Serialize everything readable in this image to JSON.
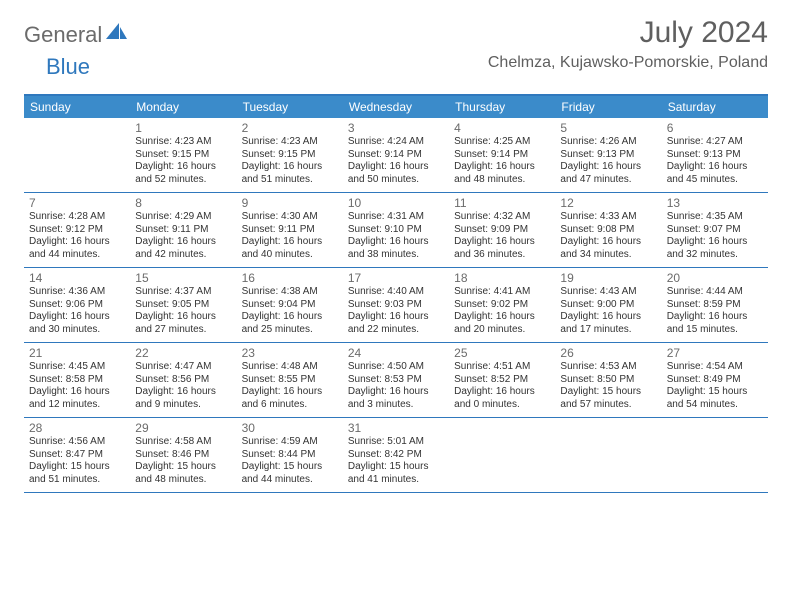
{
  "logo": {
    "general": "General",
    "blue": "Blue"
  },
  "title": "July 2024",
  "location": "Chelmza, Kujawsko-Pomorskie, Poland",
  "colors": {
    "header_bg": "#3b8bca",
    "border": "#2f78bd",
    "text_dark": "#333333",
    "text_muted": "#6b6b6b"
  },
  "day_names": [
    "Sunday",
    "Monday",
    "Tuesday",
    "Wednesday",
    "Thursday",
    "Friday",
    "Saturday"
  ],
  "weeks": [
    [
      {
        "day": "",
        "sunrise": "",
        "sunset": "",
        "daylight1": "",
        "daylight2": ""
      },
      {
        "day": "1",
        "sunrise": "Sunrise: 4:23 AM",
        "sunset": "Sunset: 9:15 PM",
        "daylight1": "Daylight: 16 hours",
        "daylight2": "and 52 minutes."
      },
      {
        "day": "2",
        "sunrise": "Sunrise: 4:23 AM",
        "sunset": "Sunset: 9:15 PM",
        "daylight1": "Daylight: 16 hours",
        "daylight2": "and 51 minutes."
      },
      {
        "day": "3",
        "sunrise": "Sunrise: 4:24 AM",
        "sunset": "Sunset: 9:14 PM",
        "daylight1": "Daylight: 16 hours",
        "daylight2": "and 50 minutes."
      },
      {
        "day": "4",
        "sunrise": "Sunrise: 4:25 AM",
        "sunset": "Sunset: 9:14 PM",
        "daylight1": "Daylight: 16 hours",
        "daylight2": "and 48 minutes."
      },
      {
        "day": "5",
        "sunrise": "Sunrise: 4:26 AM",
        "sunset": "Sunset: 9:13 PM",
        "daylight1": "Daylight: 16 hours",
        "daylight2": "and 47 minutes."
      },
      {
        "day": "6",
        "sunrise": "Sunrise: 4:27 AM",
        "sunset": "Sunset: 9:13 PM",
        "daylight1": "Daylight: 16 hours",
        "daylight2": "and 45 minutes."
      }
    ],
    [
      {
        "day": "7",
        "sunrise": "Sunrise: 4:28 AM",
        "sunset": "Sunset: 9:12 PM",
        "daylight1": "Daylight: 16 hours",
        "daylight2": "and 44 minutes."
      },
      {
        "day": "8",
        "sunrise": "Sunrise: 4:29 AM",
        "sunset": "Sunset: 9:11 PM",
        "daylight1": "Daylight: 16 hours",
        "daylight2": "and 42 minutes."
      },
      {
        "day": "9",
        "sunrise": "Sunrise: 4:30 AM",
        "sunset": "Sunset: 9:11 PM",
        "daylight1": "Daylight: 16 hours",
        "daylight2": "and 40 minutes."
      },
      {
        "day": "10",
        "sunrise": "Sunrise: 4:31 AM",
        "sunset": "Sunset: 9:10 PM",
        "daylight1": "Daylight: 16 hours",
        "daylight2": "and 38 minutes."
      },
      {
        "day": "11",
        "sunrise": "Sunrise: 4:32 AM",
        "sunset": "Sunset: 9:09 PM",
        "daylight1": "Daylight: 16 hours",
        "daylight2": "and 36 minutes."
      },
      {
        "day": "12",
        "sunrise": "Sunrise: 4:33 AM",
        "sunset": "Sunset: 9:08 PM",
        "daylight1": "Daylight: 16 hours",
        "daylight2": "and 34 minutes."
      },
      {
        "day": "13",
        "sunrise": "Sunrise: 4:35 AM",
        "sunset": "Sunset: 9:07 PM",
        "daylight1": "Daylight: 16 hours",
        "daylight2": "and 32 minutes."
      }
    ],
    [
      {
        "day": "14",
        "sunrise": "Sunrise: 4:36 AM",
        "sunset": "Sunset: 9:06 PM",
        "daylight1": "Daylight: 16 hours",
        "daylight2": "and 30 minutes."
      },
      {
        "day": "15",
        "sunrise": "Sunrise: 4:37 AM",
        "sunset": "Sunset: 9:05 PM",
        "daylight1": "Daylight: 16 hours",
        "daylight2": "and 27 minutes."
      },
      {
        "day": "16",
        "sunrise": "Sunrise: 4:38 AM",
        "sunset": "Sunset: 9:04 PM",
        "daylight1": "Daylight: 16 hours",
        "daylight2": "and 25 minutes."
      },
      {
        "day": "17",
        "sunrise": "Sunrise: 4:40 AM",
        "sunset": "Sunset: 9:03 PM",
        "daylight1": "Daylight: 16 hours",
        "daylight2": "and 22 minutes."
      },
      {
        "day": "18",
        "sunrise": "Sunrise: 4:41 AM",
        "sunset": "Sunset: 9:02 PM",
        "daylight1": "Daylight: 16 hours",
        "daylight2": "and 20 minutes."
      },
      {
        "day": "19",
        "sunrise": "Sunrise: 4:43 AM",
        "sunset": "Sunset: 9:00 PM",
        "daylight1": "Daylight: 16 hours",
        "daylight2": "and 17 minutes."
      },
      {
        "day": "20",
        "sunrise": "Sunrise: 4:44 AM",
        "sunset": "Sunset: 8:59 PM",
        "daylight1": "Daylight: 16 hours",
        "daylight2": "and 15 minutes."
      }
    ],
    [
      {
        "day": "21",
        "sunrise": "Sunrise: 4:45 AM",
        "sunset": "Sunset: 8:58 PM",
        "daylight1": "Daylight: 16 hours",
        "daylight2": "and 12 minutes."
      },
      {
        "day": "22",
        "sunrise": "Sunrise: 4:47 AM",
        "sunset": "Sunset: 8:56 PM",
        "daylight1": "Daylight: 16 hours",
        "daylight2": "and 9 minutes."
      },
      {
        "day": "23",
        "sunrise": "Sunrise: 4:48 AM",
        "sunset": "Sunset: 8:55 PM",
        "daylight1": "Daylight: 16 hours",
        "daylight2": "and 6 minutes."
      },
      {
        "day": "24",
        "sunrise": "Sunrise: 4:50 AM",
        "sunset": "Sunset: 8:53 PM",
        "daylight1": "Daylight: 16 hours",
        "daylight2": "and 3 minutes."
      },
      {
        "day": "25",
        "sunrise": "Sunrise: 4:51 AM",
        "sunset": "Sunset: 8:52 PM",
        "daylight1": "Daylight: 16 hours",
        "daylight2": "and 0 minutes."
      },
      {
        "day": "26",
        "sunrise": "Sunrise: 4:53 AM",
        "sunset": "Sunset: 8:50 PM",
        "daylight1": "Daylight: 15 hours",
        "daylight2": "and 57 minutes."
      },
      {
        "day": "27",
        "sunrise": "Sunrise: 4:54 AM",
        "sunset": "Sunset: 8:49 PM",
        "daylight1": "Daylight: 15 hours",
        "daylight2": "and 54 minutes."
      }
    ],
    [
      {
        "day": "28",
        "sunrise": "Sunrise: 4:56 AM",
        "sunset": "Sunset: 8:47 PM",
        "daylight1": "Daylight: 15 hours",
        "daylight2": "and 51 minutes."
      },
      {
        "day": "29",
        "sunrise": "Sunrise: 4:58 AM",
        "sunset": "Sunset: 8:46 PM",
        "daylight1": "Daylight: 15 hours",
        "daylight2": "and 48 minutes."
      },
      {
        "day": "30",
        "sunrise": "Sunrise: 4:59 AM",
        "sunset": "Sunset: 8:44 PM",
        "daylight1": "Daylight: 15 hours",
        "daylight2": "and 44 minutes."
      },
      {
        "day": "31",
        "sunrise": "Sunrise: 5:01 AM",
        "sunset": "Sunset: 8:42 PM",
        "daylight1": "Daylight: 15 hours",
        "daylight2": "and 41 minutes."
      },
      {
        "day": "",
        "sunrise": "",
        "sunset": "",
        "daylight1": "",
        "daylight2": ""
      },
      {
        "day": "",
        "sunrise": "",
        "sunset": "",
        "daylight1": "",
        "daylight2": ""
      },
      {
        "day": "",
        "sunrise": "",
        "sunset": "",
        "daylight1": "",
        "daylight2": ""
      }
    ]
  ]
}
